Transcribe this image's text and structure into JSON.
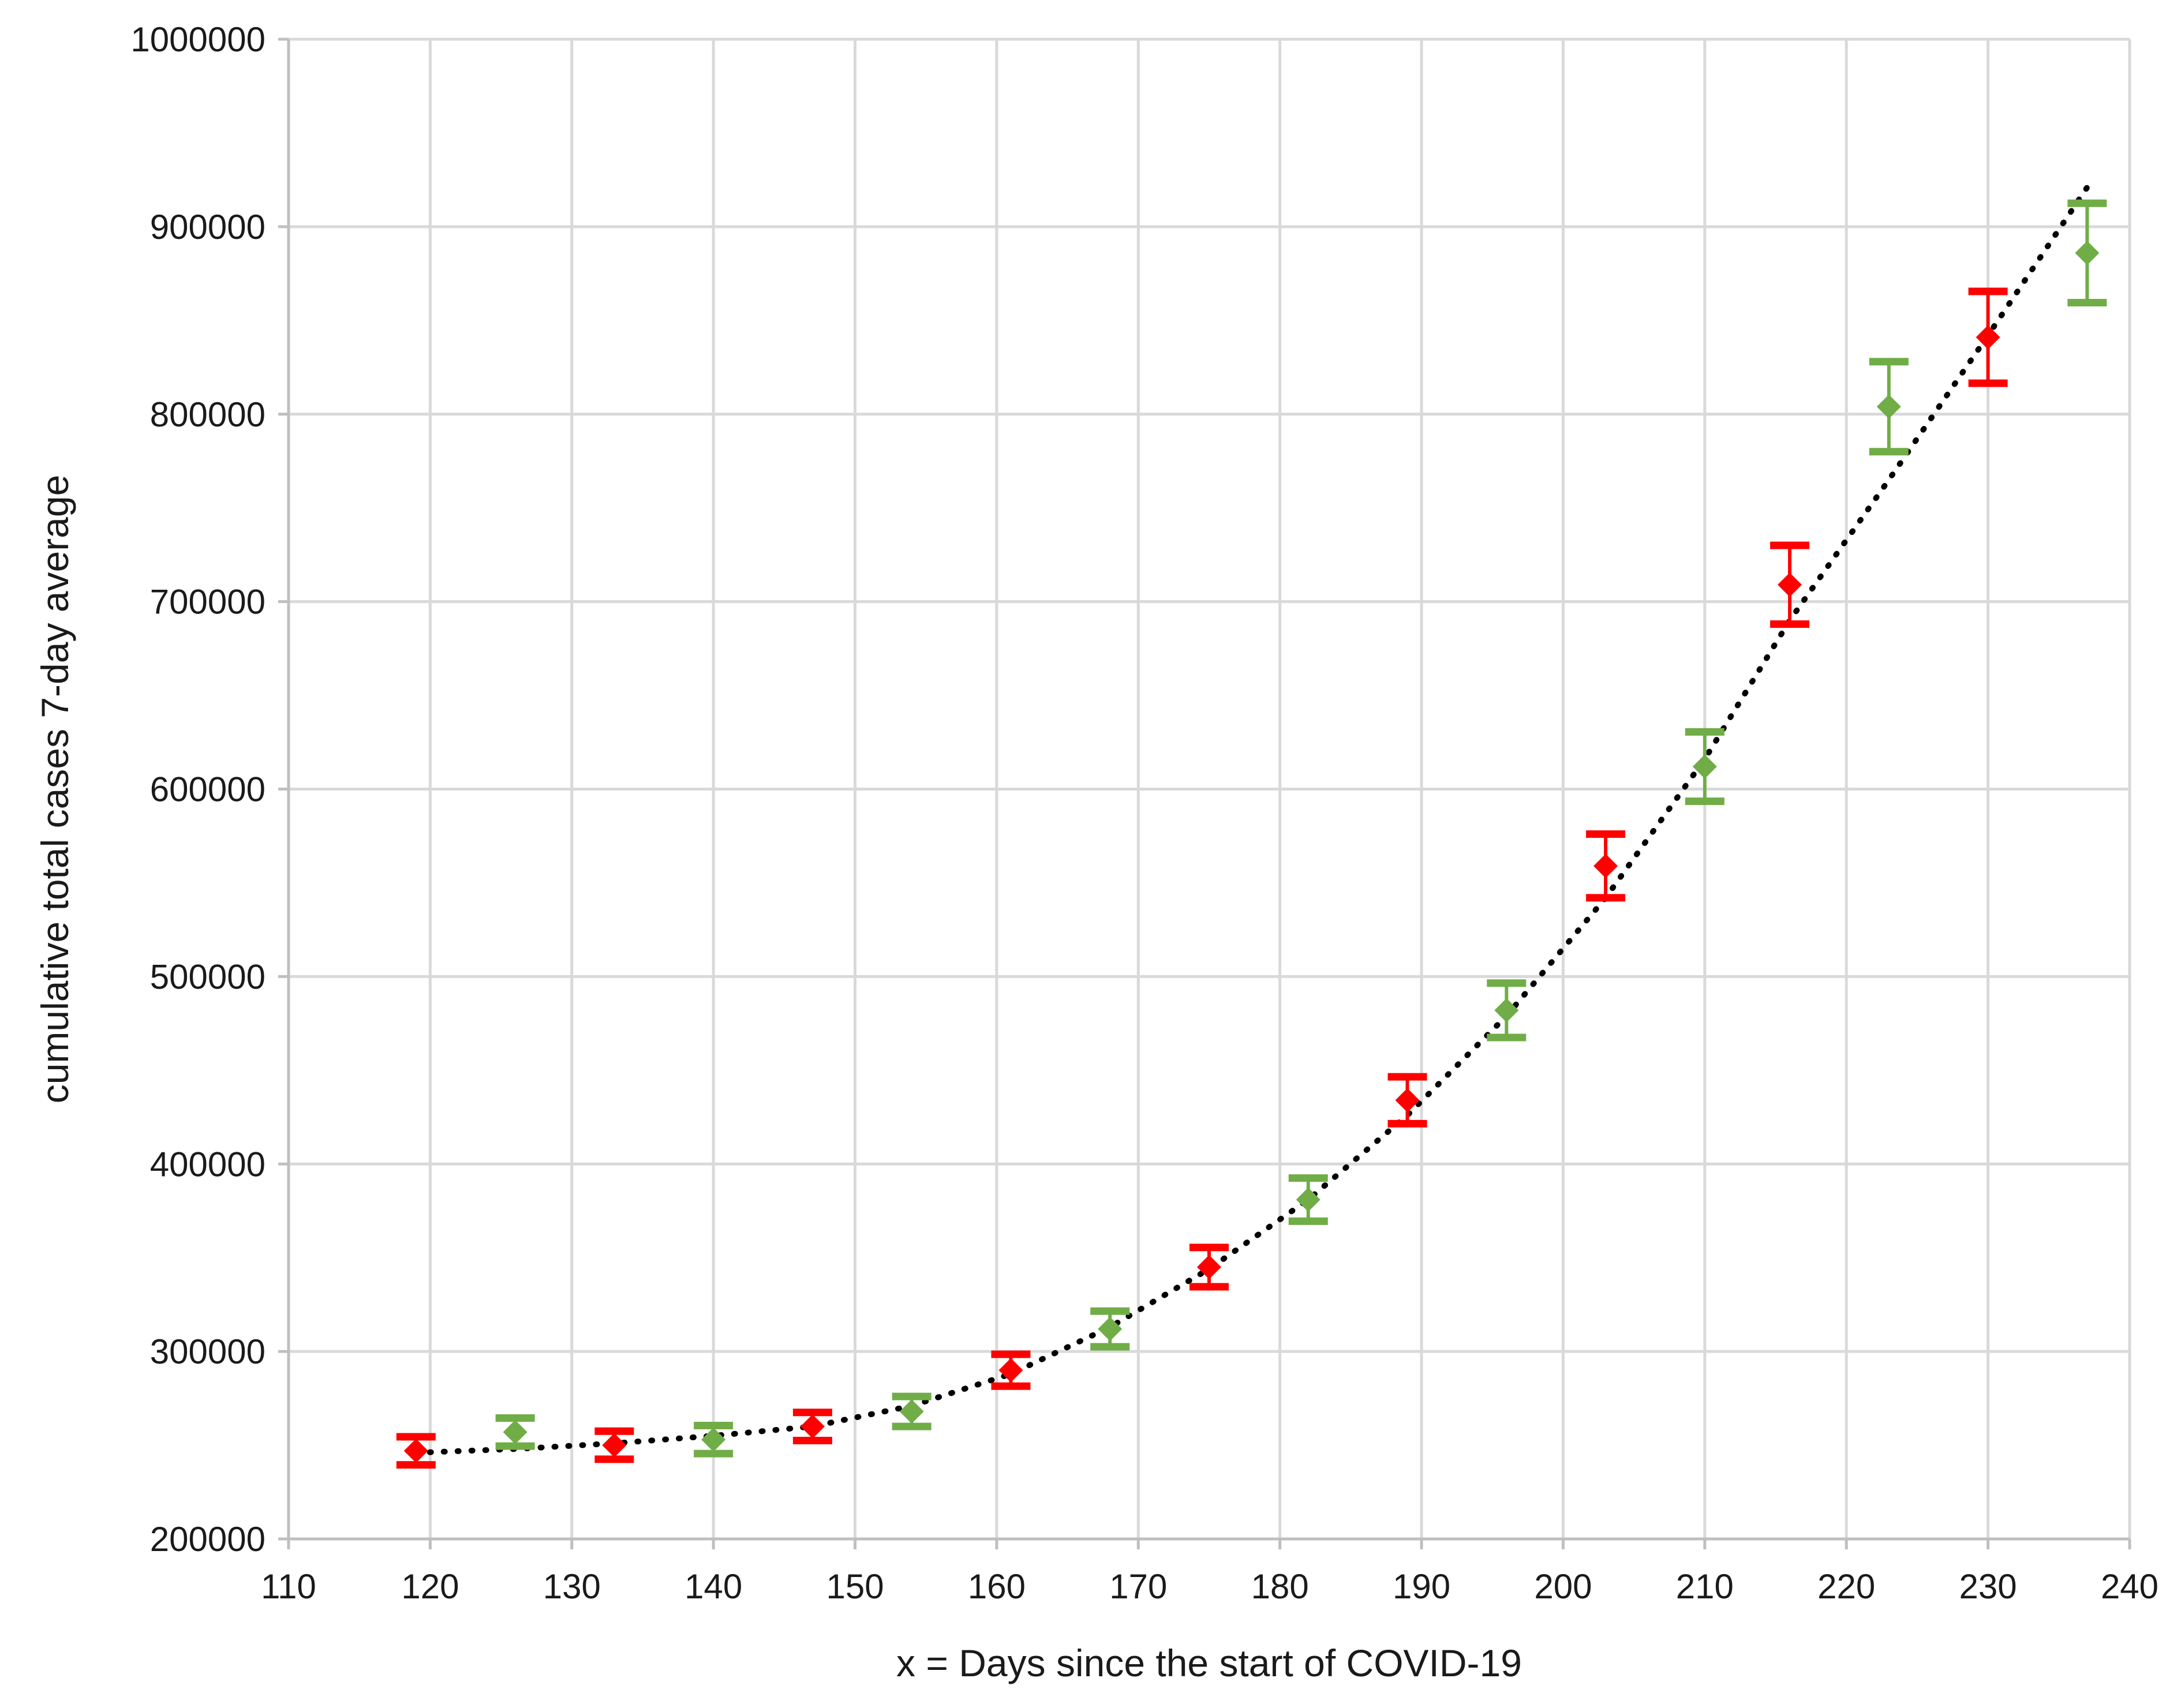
{
  "chart_data": {
    "type": "scatter",
    "title": "",
    "xlabel": "x = Days since the start of COVID-19",
    "ylabel": "cumulative total cases 7-day average",
    "xlim": [
      110,
      240
    ],
    "ylim": [
      200000,
      1000000
    ],
    "x_ticks": [
      110,
      120,
      130,
      140,
      150,
      160,
      170,
      180,
      190,
      200,
      210,
      220,
      230,
      240
    ],
    "y_ticks": [
      200000,
      300000,
      400000,
      500000,
      600000,
      700000,
      800000,
      900000,
      1000000
    ],
    "grid": true,
    "legend": "none",
    "colors": {
      "red": "#ff0000",
      "green": "#70ad47",
      "trendline": "#000000",
      "grid": "#d9d9d9"
    },
    "series": [
      {
        "color": "red",
        "points": [
          {
            "x": 119,
            "y": 247000,
            "err": 7500
          },
          {
            "x": 133,
            "y": 250000,
            "err": 7500
          },
          {
            "x": 147,
            "y": 260000,
            "err": 7500
          },
          {
            "x": 161,
            "y": 290000,
            "err": 8500
          },
          {
            "x": 175,
            "y": 345000,
            "err": 10500
          },
          {
            "x": 189,
            "y": 434000,
            "err": 12500
          },
          {
            "x": 203,
            "y": 559000,
            "err": 17000
          },
          {
            "x": 216,
            "y": 709000,
            "err": 21000
          },
          {
            "x": 230,
            "y": 841000,
            "err": 24500
          }
        ]
      },
      {
        "color": "green",
        "points": [
          {
            "x": 126,
            "y": 257000,
            "err": 7500
          },
          {
            "x": 140,
            "y": 253000,
            "err": 7500
          },
          {
            "x": 154,
            "y": 268000,
            "err": 8000
          },
          {
            "x": 168,
            "y": 312000,
            "err": 9500
          },
          {
            "x": 182,
            "y": 381000,
            "err": 11500
          },
          {
            "x": 196,
            "y": 482000,
            "err": 14500
          },
          {
            "x": 210,
            "y": 612000,
            "err": 18500
          },
          {
            "x": 223,
            "y": 804000,
            "err": 24000
          },
          {
            "x": 237,
            "y": 886000,
            "err": 26500
          }
        ]
      }
    ],
    "trendline": {
      "style": "dotted",
      "x": [
        119,
        126,
        133,
        140,
        147,
        154,
        161,
        168,
        175,
        182,
        189,
        196,
        203,
        210,
        216,
        223,
        230,
        237
      ],
      "y": [
        246000,
        248000,
        251000,
        255000,
        260000,
        271000,
        288000,
        313000,
        344000,
        381000,
        426000,
        479000,
        542000,
        616000,
        690000,
        765000,
        842000,
        921000
      ]
    }
  }
}
